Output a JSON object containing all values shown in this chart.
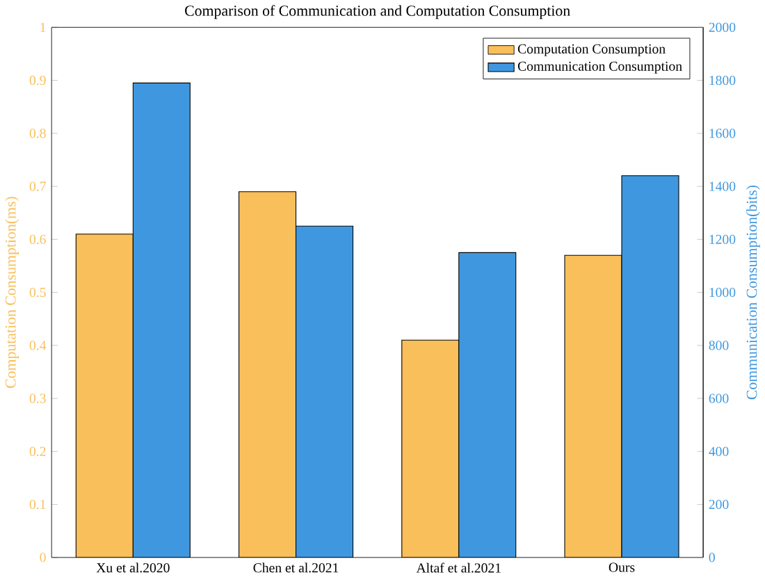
{
  "chart_data": {
    "type": "bar",
    "title": "Comparison of Communication and Computation Consumption",
    "categories": [
      "Xu et al.2020",
      "Chen et al.2021",
      "Altaf et al.2021",
      "Ours"
    ],
    "series": [
      {
        "name": "Computation Consumption",
        "color": "#f9bf5b",
        "values": [
          0.61,
          0.69,
          0.41,
          0.57
        ]
      },
      {
        "name": "Communication Consumption",
        "color": "#3f98df",
        "axis": "y2",
        "values": [
          1790,
          1250,
          1150,
          1440
        ]
      }
    ],
    "ylabel": "Computation Consumption(ms)",
    "y2label": "Communication Consumption(bits)",
    "ylim": [
      0,
      1
    ],
    "yticks": [
      0,
      0.1,
      0.2,
      0.3,
      0.4,
      0.5,
      0.6,
      0.7,
      0.8,
      0.9,
      1
    ],
    "y2lim": [
      0,
      2000
    ],
    "y2ticks": [
      0,
      200,
      400,
      600,
      800,
      1000,
      1200,
      1400,
      1600,
      1800,
      2000
    ],
    "legend": "top right"
  }
}
